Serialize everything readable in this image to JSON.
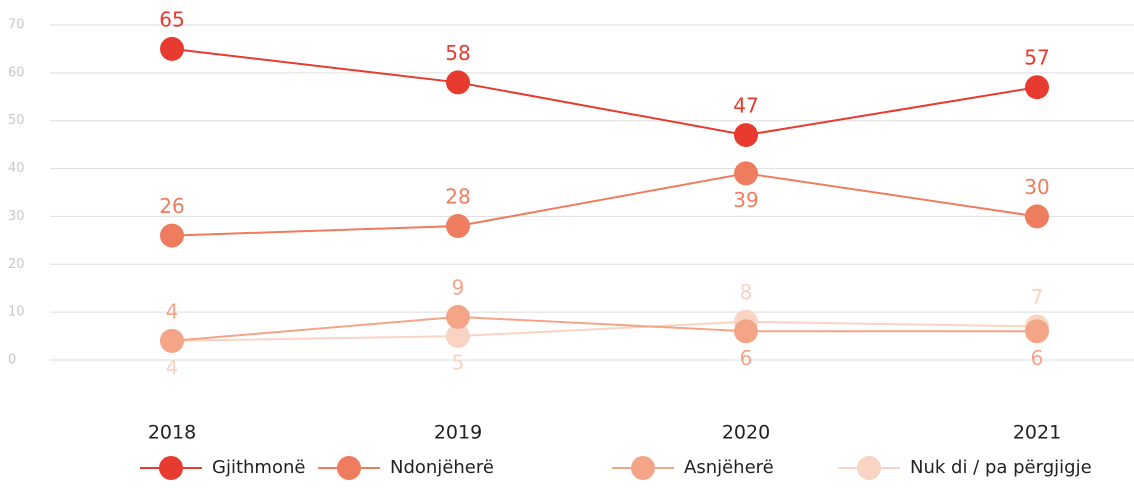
{
  "chart_data": {
    "type": "line",
    "categories": [
      "2018",
      "2019",
      "2020",
      "2021"
    ],
    "series": [
      {
        "name": "Gjithmonë",
        "color": "#e63b2e",
        "values": [
          65,
          58,
          47,
          57
        ]
      },
      {
        "name": "Ndonjëherë",
        "color": "#ee7c5e",
        "values": [
          26,
          28,
          39,
          30
        ]
      },
      {
        "name": "Asnjëherë",
        "color": "#f4a487",
        "values": [
          4,
          9,
          6,
          6
        ]
      },
      {
        "name": "Nuk di / pa përgjigje",
        "color": "#f9d3c3",
        "values": [
          4,
          5,
          8,
          7
        ]
      }
    ],
    "ylim": [
      0,
      70
    ],
    "yticks": [
      0,
      10,
      20,
      30,
      40,
      50,
      60,
      70
    ],
    "grid": true,
    "legend": "bottom"
  }
}
